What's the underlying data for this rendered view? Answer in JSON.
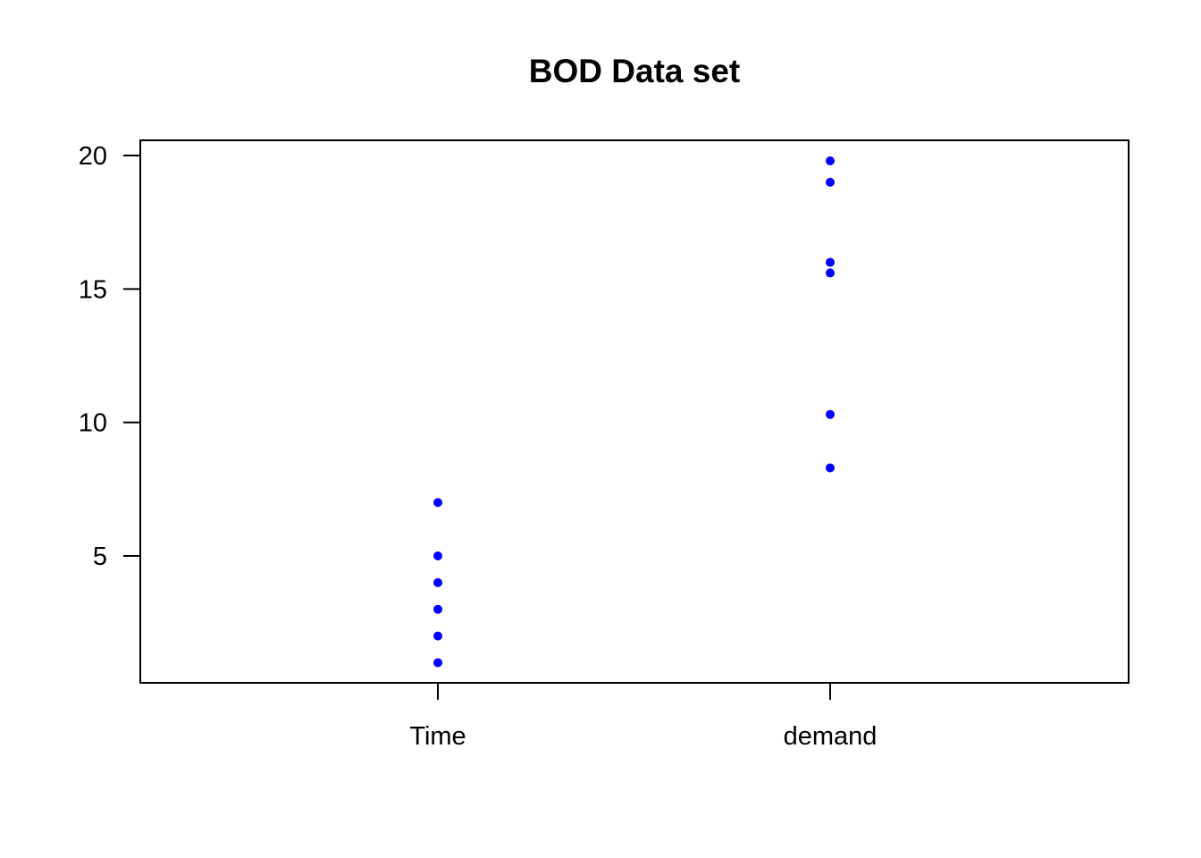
{
  "chart_data": {
    "type": "scatter",
    "title": "BOD Data set",
    "xlabel": "",
    "ylabel": "",
    "categories": [
      "Time",
      "demand"
    ],
    "series": [
      {
        "category": "Time",
        "values": [
          1,
          2,
          3,
          4,
          5,
          7
        ]
      },
      {
        "category": "demand",
        "values": [
          8.3,
          10.3,
          19.0,
          16.0,
          15.6,
          19.8
        ]
      }
    ],
    "yticks": [
      5,
      10,
      15,
      20
    ],
    "ylim": [
      0.5,
      20.6
    ],
    "grid": false,
    "legend": "none",
    "point_color": "#0000ff",
    "axis_color": "#000000"
  }
}
